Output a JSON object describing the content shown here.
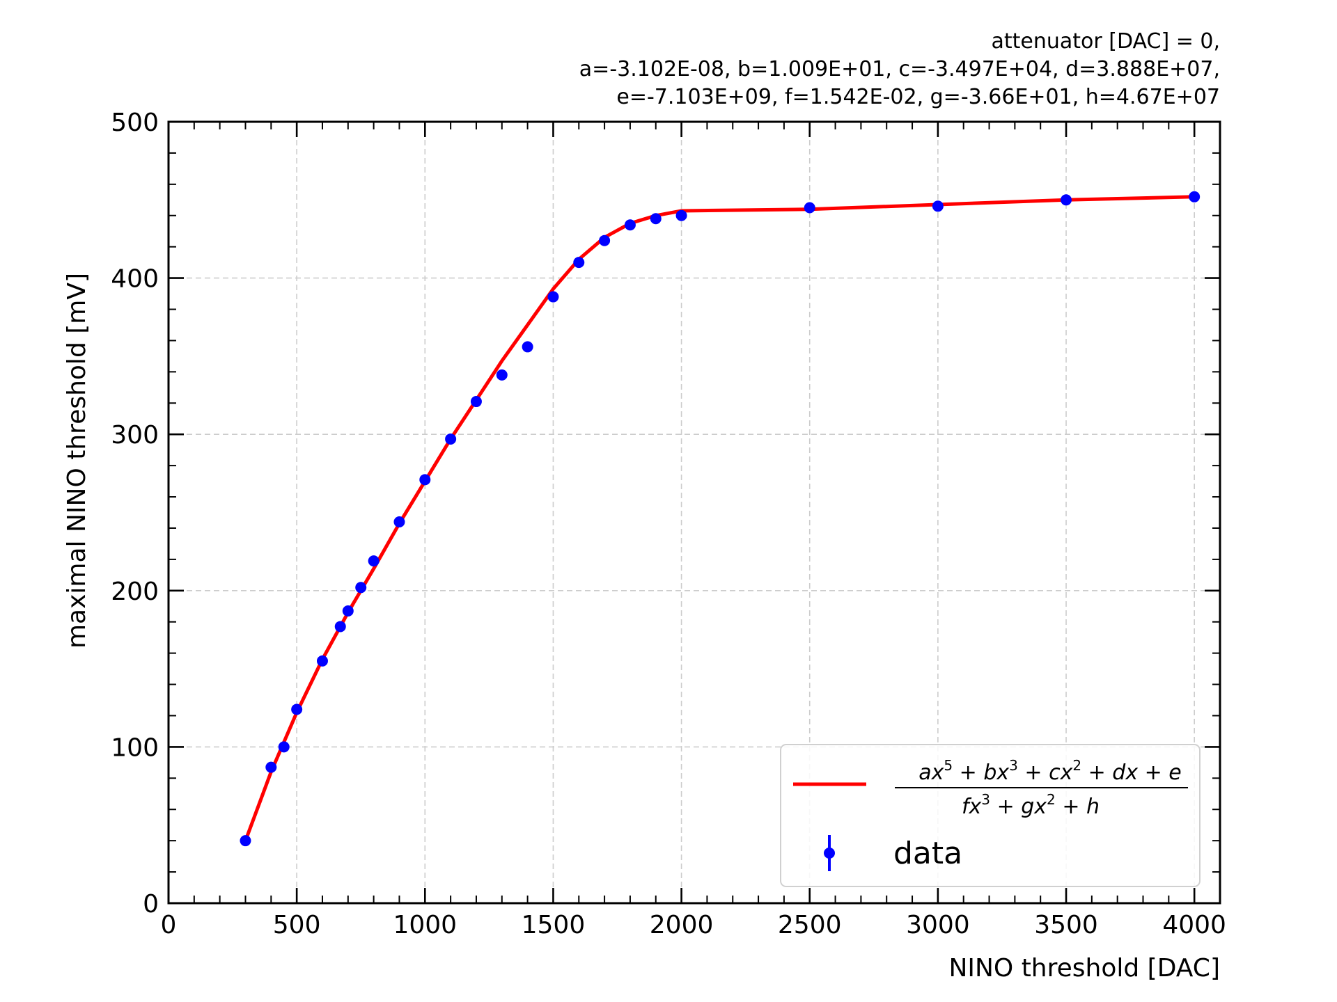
{
  "chart_data": {
    "type": "scatter",
    "xlabel": "NINO threshold [DAC]",
    "ylabel": "maximal NINO threshold [mV]",
    "header_lines": [
      "attenuator [DAC] = 0,",
      "a=-3.102E-08, b=1.009E+01, c=-3.497E+04, d=3.888E+07,",
      "e=-7.103E+09, f=1.542E-02, g=-3.66E+01, h=4.67E+07"
    ],
    "xlim": [
      0,
      4100
    ],
    "ylim": [
      0,
      500
    ],
    "x_ticks": [
      0,
      500,
      1000,
      1500,
      2000,
      2500,
      3000,
      3500,
      4000
    ],
    "y_ticks": [
      0,
      100,
      200,
      300,
      400,
      500
    ],
    "x_minor_step": 100,
    "y_minor_step": 20,
    "grid": true,
    "legend_position": "lower-right",
    "colors": {
      "fit": "#ff0000",
      "data": "#0000ff"
    },
    "series": [
      {
        "name": "data",
        "kind": "points",
        "x": [
          300,
          400,
          450,
          500,
          600,
          670,
          700,
          750,
          800,
          900,
          1000,
          1100,
          1200,
          1300,
          1400,
          1500,
          1600,
          1700,
          1800,
          1900,
          2000,
          2500,
          3000,
          3500,
          4000
        ],
        "y": [
          40,
          87,
          100,
          124,
          155,
          177,
          187,
          202,
          219,
          244,
          271,
          297,
          321,
          338,
          356,
          388,
          410,
          424,
          434,
          438,
          440,
          445,
          446,
          450,
          452
        ]
      },
      {
        "name": "fit",
        "kind": "line",
        "label_numerator": [
          "ax",
          "5",
          " + bx",
          "3",
          " + cx",
          "2",
          " + dx + e"
        ],
        "label_denominator": [
          "fx",
          "3",
          " + gx",
          "2",
          " + h"
        ],
        "x": [
          300,
          400,
          500,
          600,
          700,
          800,
          900,
          1000,
          1100,
          1200,
          1300,
          1400,
          1500,
          1600,
          1700,
          1800,
          1900,
          2000,
          2500,
          3000,
          3500,
          4000
        ],
        "y": [
          40,
          84,
          122,
          156,
          186,
          214,
          243,
          270,
          297,
          322,
          347,
          370,
          393,
          412,
          426,
          435,
          440,
          443,
          444,
          447,
          450,
          452
        ]
      }
    ]
  }
}
